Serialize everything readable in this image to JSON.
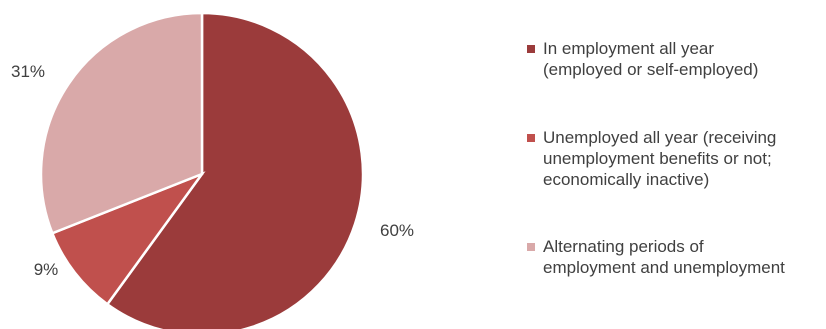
{
  "chart_data": {
    "type": "pie",
    "title": "",
    "slices": [
      {
        "label": "In employment all year (employed or self-employed)",
        "value": 60,
        "label_text": "60%",
        "color": "#9B3B3B"
      },
      {
        "label": "Unemployed all year (receiving unemployment benefits or not; economically inactive)",
        "value": 9,
        "label_text": "9%",
        "color": "#C0504D"
      },
      {
        "label": "Alternating periods of employment and unemployment",
        "value": 31,
        "label_text": "31%",
        "color": "#D9A9A9"
      }
    ],
    "legend_lines": [
      "In employment all year\n(employed or self-employed)",
      "Unemployed all year (receiving\nunemployment benefits or not;\neconomically inactive)",
      "Alternating periods of\nemployment and unemployment"
    ],
    "legend_position": "right",
    "start_angle": "12 o'clock, clockwise"
  }
}
